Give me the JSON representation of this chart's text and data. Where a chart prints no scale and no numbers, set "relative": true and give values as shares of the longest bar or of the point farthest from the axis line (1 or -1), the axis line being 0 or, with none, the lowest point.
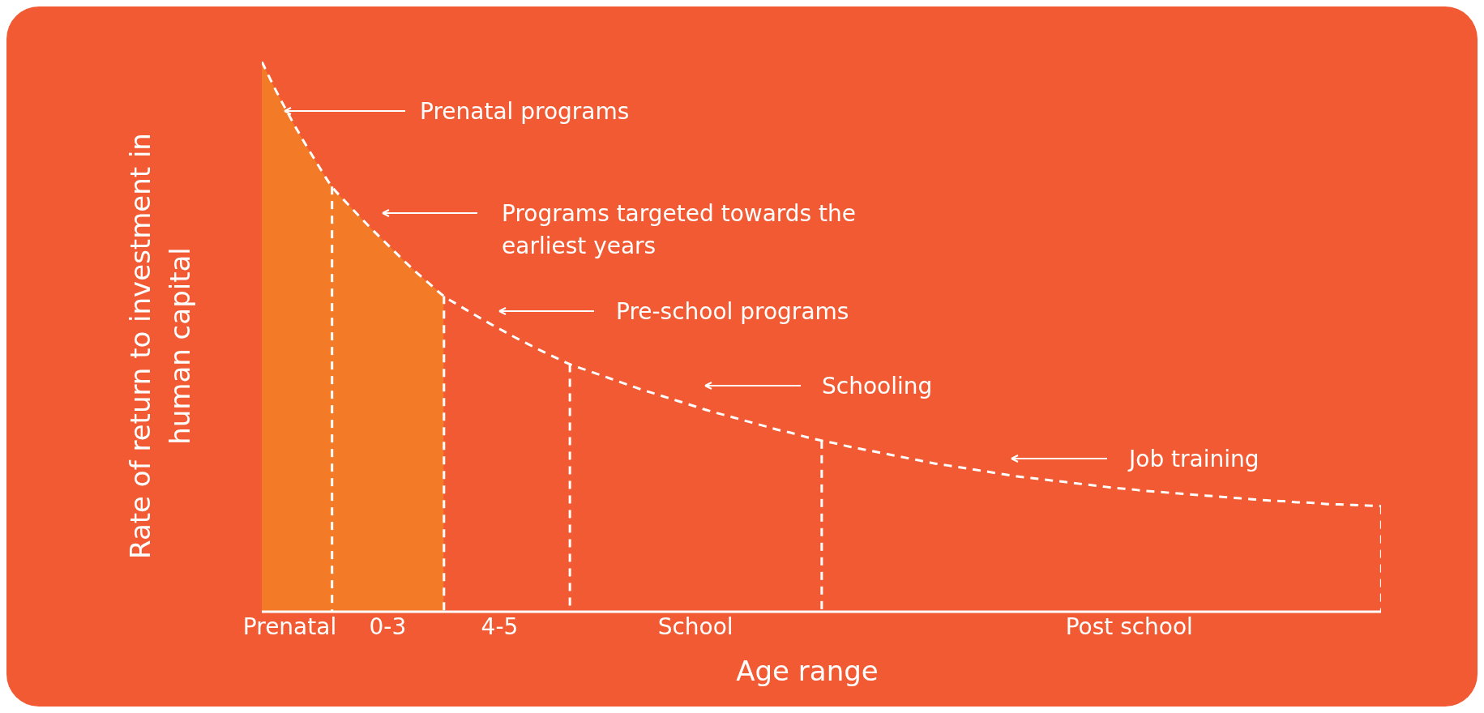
{
  "chart_data": {
    "type": "line",
    "relative": true,
    "xlabel": "Age range",
    "ylabel": "Rate of return to investment in human capital",
    "categories": [
      null,
      null,
      "Prenatal",
      null,
      null,
      null,
      null,
      null,
      null,
      "0-3",
      null,
      null,
      null,
      null,
      null,
      null,
      null,
      "4-5",
      null,
      null,
      null,
      null,
      null,
      null,
      null,
      null,
      null,
      null,
      null,
      null,
      null,
      "School",
      null,
      null,
      null,
      null,
      null,
      null,
      null,
      null,
      null,
      null,
      null,
      null,
      null,
      null,
      null,
      null,
      null,
      null,
      null,
      null,
      null,
      null,
      null,
      null,
      null,
      null,
      null,
      null,
      null,
      null,
      "Post school",
      null,
      null,
      null,
      null,
      null,
      null,
      null,
      null,
      null,
      null,
      null,
      null,
      null,
      null,
      null,
      null,
      null,
      null
    ],
    "series": [
      {
        "type": "area",
        "color": "#f37b28",
        "values": [
          1.0,
          0.948,
          0.9,
          0.855,
          0.813,
          0.773,
          0.745,
          0.718,
          0.692,
          0.667,
          0.642,
          0.618,
          0.596,
          0.574,
          null,
          null,
          null,
          null,
          null,
          null,
          null,
          null,
          null,
          null,
          null,
          null,
          null,
          null,
          null,
          null,
          null,
          null,
          null,
          null,
          null,
          null,
          null,
          null,
          null,
          null,
          null,
          null,
          null,
          null,
          null,
          null,
          null,
          null,
          null,
          null,
          null,
          null,
          null,
          null,
          null,
          null,
          null,
          null,
          null,
          null,
          null,
          null,
          null,
          null,
          null,
          null,
          null,
          null,
          null,
          null,
          null,
          null,
          null,
          null,
          null,
          null,
          null,
          null,
          null,
          null,
          null
        ]
      },
      {
        "type": "line",
        "color": "#ffffff",
        "line_style": "dashed",
        "values": [
          1.0,
          0.948,
          0.9,
          0.855,
          0.813,
          0.773,
          0.745,
          0.718,
          0.692,
          0.667,
          0.642,
          0.618,
          0.596,
          0.574,
          0.558,
          0.543,
          0.528,
          0.514,
          0.5,
          0.487,
          0.474,
          0.462,
          0.45,
          0.441,
          0.432,
          0.423,
          0.414,
          0.405,
          0.397,
          0.389,
          0.381,
          0.373,
          0.365,
          0.358,
          0.351,
          0.344,
          0.337,
          0.33,
          0.324,
          0.317,
          0.311,
          0.306,
          0.3,
          0.295,
          0.29,
          0.285,
          0.28,
          0.275,
          0.27,
          0.266,
          0.262,
          0.258,
          0.254,
          0.25,
          0.246,
          0.243,
          0.24,
          0.237,
          0.234,
          0.231,
          0.228,
          0.225,
          0.223,
          0.22,
          0.218,
          0.216,
          0.214,
          0.212,
          0.21,
          0.208,
          0.206,
          0.204,
          0.202,
          0.201,
          0.199,
          0.198,
          0.196,
          0.195,
          0.194,
          0.193,
          0.192
        ]
      },
      {
        "type": "bar",
        "color": "#ffffff",
        "line_style": "dashed",
        "values": [
          null,
          null,
          null,
          null,
          null,
          0.773,
          null,
          null,
          null,
          null,
          null,
          null,
          null,
          0.574,
          null,
          null,
          null,
          null,
          null,
          null,
          null,
          null,
          0.45,
          null,
          null,
          null,
          null,
          null,
          null,
          null,
          null,
          null,
          null,
          null,
          null,
          null,
          null,
          null,
          null,
          null,
          0.311,
          null,
          null,
          null,
          null,
          null,
          null,
          null,
          null,
          null,
          null,
          null,
          null,
          null,
          null,
          null,
          null,
          null,
          null,
          null,
          null,
          null,
          null,
          null,
          null,
          null,
          null,
          null,
          null,
          null,
          null,
          null,
          null,
          null,
          null,
          null,
          null,
          null,
          null,
          null,
          0.192
        ]
      }
    ],
    "annotations": [
      "Prenatal programs",
      "Programs targeted towards the earliest years",
      "Pre-school programs",
      "Schooling",
      "Job training"
    ]
  }
}
